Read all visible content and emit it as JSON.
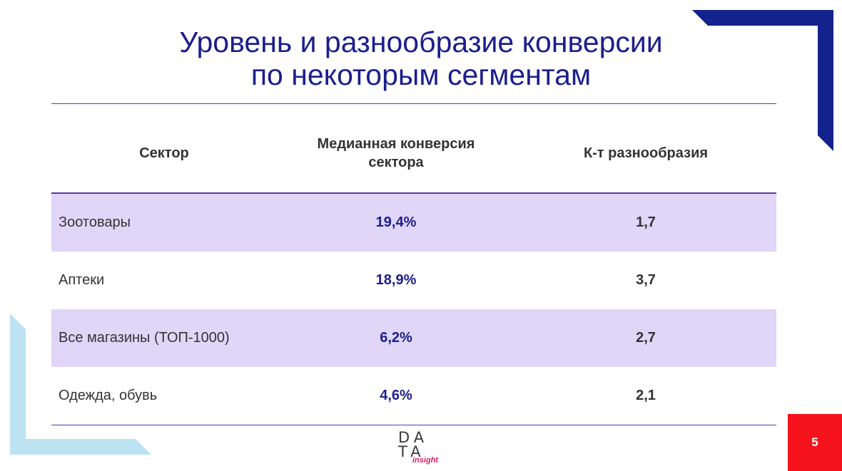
{
  "slide": {
    "title_line1": "Уровень и разнообразие конверсии",
    "title_line2": "по некоторым сегментам",
    "page_number": "5"
  },
  "table": {
    "headers": [
      "Сектор",
      "Медианная конверсия сектора",
      "К-т разнообразия"
    ],
    "rows": [
      {
        "sector": "Зоотовары",
        "conversion": "19,4%",
        "diversity": "1,7"
      },
      {
        "sector": "Аптеки",
        "conversion": "18,9%",
        "diversity": "3,7"
      },
      {
        "sector": "Все магазины (ТОП-1000)",
        "conversion": "6,2%",
        "diversity": "2,7"
      },
      {
        "sector": "Одежда, обувь",
        "conversion": "4,6%",
        "diversity": "2,1"
      }
    ]
  },
  "logo": {
    "line1": "DA",
    "line2": "TA",
    "tagline": "insight"
  },
  "colors": {
    "title": "#1c1e8c",
    "row_shade": "#e0d6f8",
    "rule": "#5a3aa6",
    "badge": "#f4131a",
    "corner_dark": "#13228c",
    "corner_light": "#bde3f3"
  }
}
